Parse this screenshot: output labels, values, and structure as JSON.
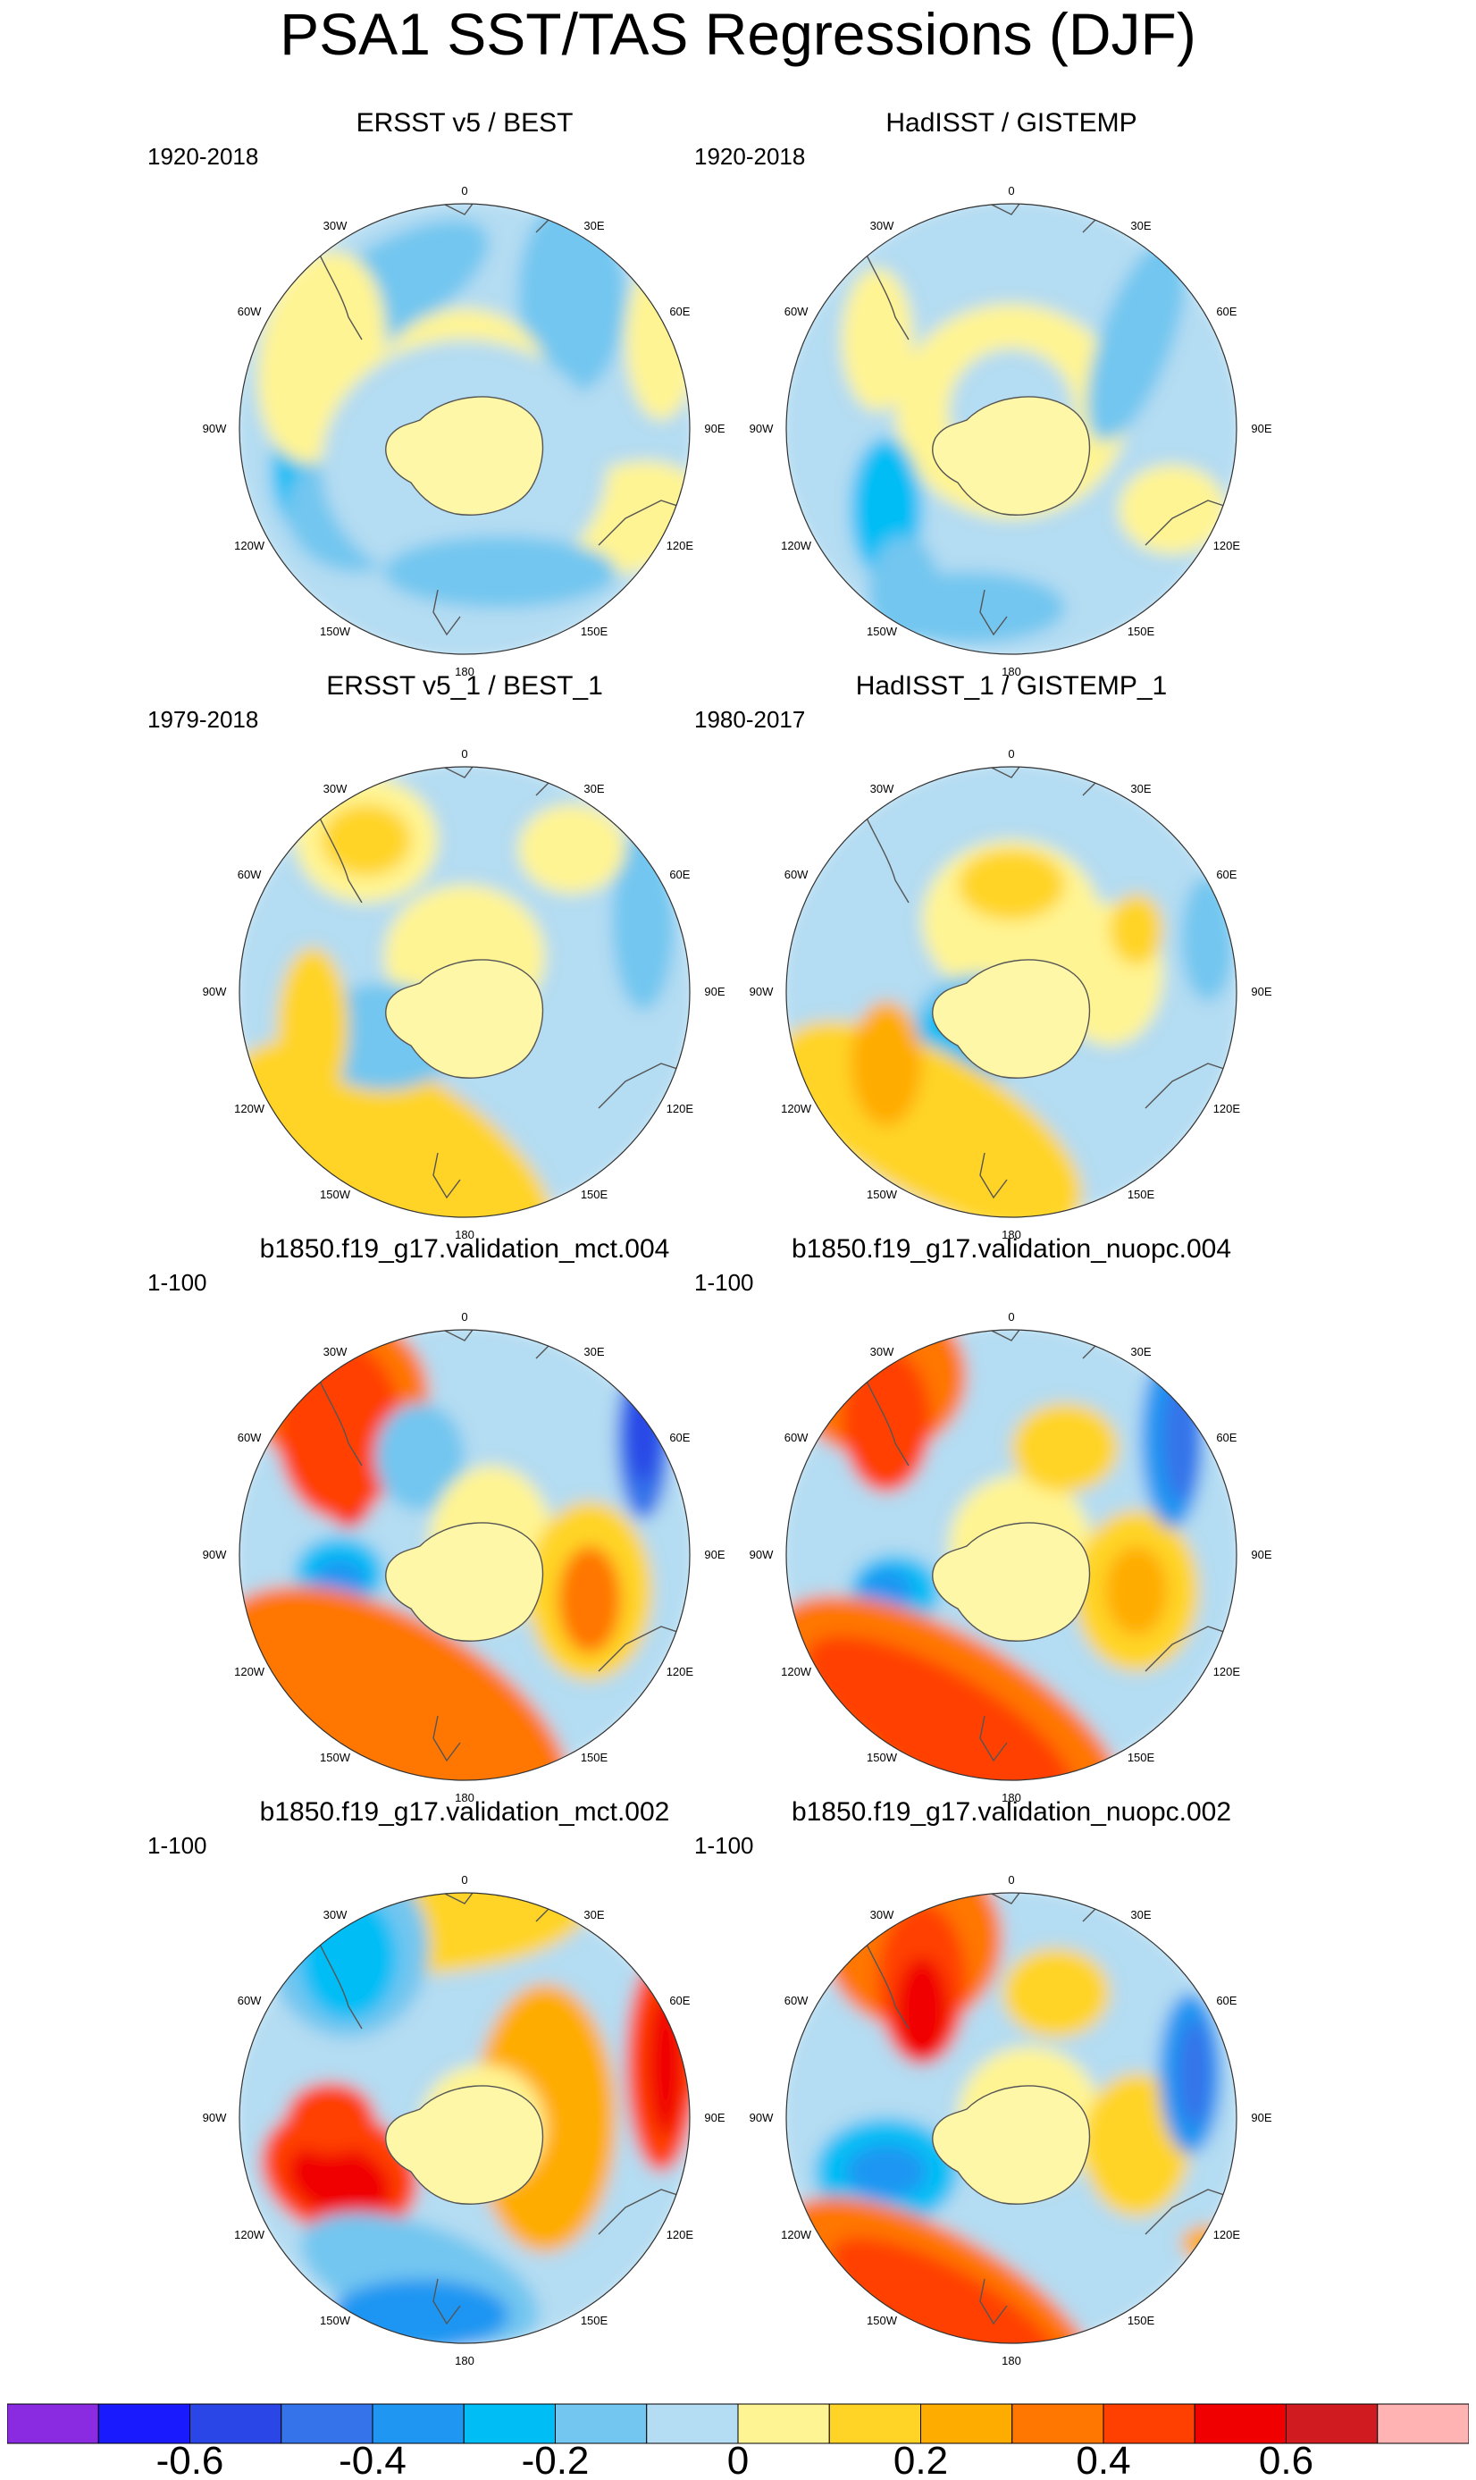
{
  "title": "PSA1 SST/TAS Regressions (DJF)",
  "colors": [
    "#8a2be2",
    "#1a1aff",
    "#2b46e6",
    "#3473ea",
    "#1f96f2",
    "#00bdf5",
    "#72c6f0",
    "#b4dcf2",
    "#fff493",
    "#ffd426",
    "#ffac00",
    "#ff7600",
    "#ff4000",
    "#f00000",
    "#d01b20",
    "#ffb3b3"
  ],
  "panels": [
    {
      "title": "ERSST v5 / BEST",
      "period": "1920-2018"
    },
    {
      "title": "HadISST / GISTEMP",
      "period": "1920-2018"
    },
    {
      "title": "ERSST v5_1 / BEST_1",
      "period": "1979-2018"
    },
    {
      "title": "HadISST_1 / GISTEMP_1",
      "period": "1980-2017"
    },
    {
      "title": "b1850.f19_g17.validation_mct.004",
      "period": "1-100"
    },
    {
      "title": "b1850.f19_g17.validation_nuopc.004",
      "period": "1-100"
    },
    {
      "title": "b1850.f19_g17.validation_mct.002",
      "period": "1-100"
    },
    {
      "title": "b1850.f19_g17.validation_nuopc.002",
      "period": "1-100"
    }
  ],
  "longitude_labels": [
    "0",
    "30E",
    "60E",
    "90E",
    "120E",
    "150E",
    "180",
    "150W",
    "120W",
    "90W",
    "60W",
    "30W"
  ],
  "colorbar": {
    "labels": [
      "-0.6",
      "-0.4",
      "-0.2",
      "0",
      "0.2",
      "0.4",
      "0.6"
    ]
  }
}
